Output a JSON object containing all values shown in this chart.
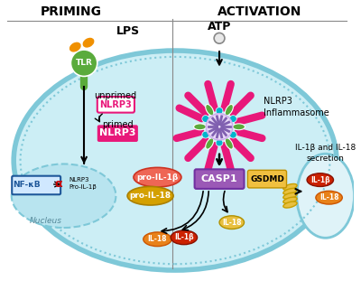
{
  "bg_color": "#ffffff",
  "cell_color": "#cceef5",
  "cell_border_color": "#7ec8d8",
  "nucleus_color": "#b8e4ef",
  "priming_label": "PRIMING",
  "activation_label": "ACTIVATION",
  "atp_label": "ATP",
  "lps_label": "LPS",
  "tlr_label": "TLR",
  "unprimed_label": "unprimed",
  "primed_label": "primed",
  "nlrp3_label": "NLRP3",
  "nlrp3_inflammasome_label": "NLRP3\nInflammasome",
  "nucleus_label": "Nucleus",
  "casp1_label": "CASP1",
  "gsdmd_label": "GSDMD",
  "pro_il1b_label": "pro-IL-1β",
  "pro_il18_label": "pro-IL-18",
  "il1b_label": "IL-1β",
  "il18_label": "IL-18",
  "secretion_label": "IL-1β and IL-18\nsecretion",
  "nlrp3_pro_label": "NLRP3\nPro-IL-1β",
  "pink_color": "#e8187a",
  "green_color": "#5aab3c",
  "teal_color": "#00b5cc",
  "purple_color": "#9b59b6",
  "orange_color": "#e8821a",
  "dark_orange": "#cc5500",
  "red_color": "#cc2200",
  "gold_color": "#d4a000",
  "nfkb_blue": "#1e5799"
}
